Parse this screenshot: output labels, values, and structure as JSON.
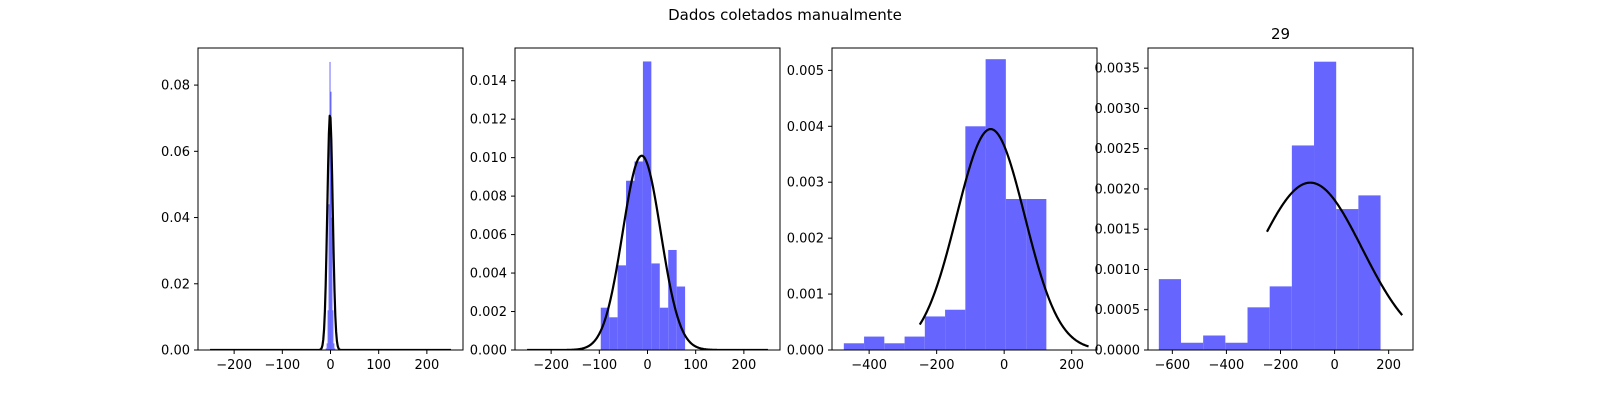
{
  "figure": {
    "suptitle": "Dados coletados manualmente"
  },
  "colors": {
    "bars": "#6666ff",
    "curve": "#000000",
    "axes": "#000000",
    "background": "#ffffff"
  },
  "chart_data": [
    {
      "type": "bar",
      "title": "",
      "xlabel": "",
      "ylabel": "",
      "xlim": [
        -275,
        275
      ],
      "ylim": [
        0,
        0.0912
      ],
      "xticks": [
        -200,
        -100,
        0,
        100,
        200
      ],
      "xtick_labels": [
        "−200",
        "−100",
        "0",
        "100",
        "200"
      ],
      "yticks": [
        0.0,
        0.02,
        0.04,
        0.06,
        0.08
      ],
      "ytick_labels": [
        "0.00",
        "0.02",
        "0.04",
        "0.06",
        "0.08"
      ],
      "grid": false,
      "histogram": {
        "bin_edges": [
          -10,
          -8,
          -6,
          -4,
          -2,
          0,
          2,
          4,
          6,
          8,
          10
        ],
        "densities": [
          0.0005,
          0.002,
          0.012,
          0.044,
          0.087,
          0.078,
          0.04,
          0.012,
          0.002,
          0.0005
        ]
      },
      "normal_fit": {
        "mean": -1,
        "std": 5.6,
        "x_range": [
          -250,
          250
        ]
      }
    },
    {
      "type": "bar",
      "title": "",
      "xlabel": "",
      "ylabel": "",
      "xlim": [
        -275,
        275
      ],
      "ylim": [
        0,
        0.0157
      ],
      "xticks": [
        -200,
        -100,
        0,
        100,
        200
      ],
      "xtick_labels": [
        "−200",
        "−100",
        "0",
        "100",
        "200"
      ],
      "yticks": [
        0.0,
        0.002,
        0.004,
        0.006,
        0.008,
        0.01,
        0.012,
        0.014
      ],
      "ytick_labels": [
        "0.000",
        "0.002",
        "0.004",
        "0.006",
        "0.008",
        "0.010",
        "0.012",
        "0.014"
      ],
      "grid": false,
      "histogram": {
        "bin_edges": [
          -97,
          -79.5,
          -62,
          -44.5,
          -27,
          -9.5,
          8,
          25.5,
          43,
          60.5,
          78
        ],
        "densities": [
          0.0022,
          0.0017,
          0.0044,
          0.0088,
          0.0098,
          0.015,
          0.0045,
          0.0022,
          0.0052,
          0.0033
        ]
      },
      "normal_fit": {
        "mean": -12,
        "std": 39.5,
        "x_range": [
          -250,
          250
        ]
      }
    },
    {
      "type": "bar",
      "title": "",
      "xlabel": "",
      "ylabel": "",
      "xlim": [
        -510,
        275
      ],
      "ylim": [
        0,
        0.0054
      ],
      "xticks": [
        -400,
        -200,
        0,
        200
      ],
      "xtick_labels": [
        "−400",
        "−200",
        "0",
        "200"
      ],
      "yticks": [
        0.0,
        0.001,
        0.002,
        0.003,
        0.004,
        0.005
      ],
      "ytick_labels": [
        "0.000",
        "0.001",
        "0.002",
        "0.003",
        "0.004",
        "0.005"
      ],
      "grid": false,
      "histogram": {
        "bin_edges": [
          -475,
          -415,
          -355,
          -295,
          -235,
          -175,
          -115,
          -55,
          5,
          65,
          125
        ],
        "densities": [
          0.00012,
          0.00024,
          0.00012,
          0.00024,
          0.0006,
          0.00072,
          0.004,
          0.0052,
          0.0027,
          0.0027
        ]
      },
      "normal_fit": {
        "mean": -40,
        "std": 101,
        "x_range": [
          -250,
          250
        ]
      }
    },
    {
      "type": "bar",
      "title": "29",
      "xlabel": "",
      "ylabel": "",
      "xlim": [
        -690,
        290
      ],
      "ylim": [
        0,
        0.00375
      ],
      "xticks": [
        -600,
        -400,
        -200,
        0,
        200
      ],
      "xtick_labels": [
        "−600",
        "−400",
        "−200",
        "0",
        "200"
      ],
      "yticks": [
        0.0,
        0.0005,
        0.001,
        0.0015,
        0.002,
        0.0025,
        0.003,
        0.0035
      ],
      "ytick_labels": [
        "0.0000",
        "0.0005",
        "0.0010",
        "0.0015",
        "0.0020",
        "0.0025",
        "0.0030",
        "0.0035"
      ],
      "grid": false,
      "histogram": {
        "bin_edges": [
          -650,
          -568,
          -486,
          -404,
          -322,
          -240,
          -158,
          -76,
          6,
          88,
          170
        ],
        "densities": [
          0.00088,
          9e-05,
          0.00018,
          9e-05,
          0.00053,
          0.00079,
          0.00254,
          0.00358,
          0.00175,
          0.00192
        ]
      },
      "normal_fit": {
        "mean": -90,
        "std": 192,
        "x_range": [
          -250,
          250
        ]
      }
    }
  ]
}
